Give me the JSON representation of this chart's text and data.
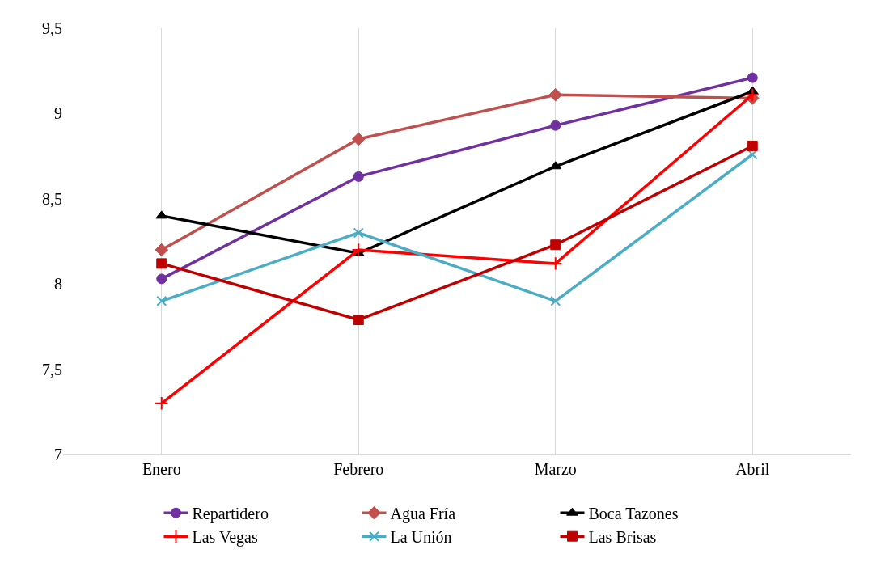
{
  "chart_data": {
    "type": "line",
    "categories": [
      "Enero",
      "Febrero",
      "Marzo",
      "Abril"
    ],
    "series": [
      {
        "name": "Repartidero",
        "color": "#7030a0",
        "marker": "circle",
        "values": [
          8.03,
          8.63,
          8.93,
          9.21
        ]
      },
      {
        "name": "Agua Fría",
        "color": "#c0504d",
        "marker": "diamond",
        "values": [
          8.2,
          8.85,
          9.11,
          9.09
        ]
      },
      {
        "name": "Boca Tazones",
        "color": "#000000",
        "marker": "triangle",
        "values": [
          8.4,
          8.18,
          8.69,
          9.13
        ]
      },
      {
        "name": "Las Vegas",
        "color": "#ff0000",
        "marker": "cross",
        "values": [
          7.3,
          8.2,
          8.12,
          9.11
        ]
      },
      {
        "name": "La Unión",
        "color": "#4bacc6",
        "marker": "x",
        "values": [
          7.9,
          8.3,
          7.9,
          8.76
        ]
      },
      {
        "name": "Las Brisas",
        "color": "#c00000",
        "marker": "square",
        "values": [
          8.12,
          7.79,
          8.23,
          8.81
        ]
      }
    ],
    "ylim": [
      7,
      9.5
    ],
    "yticks": [
      {
        "value": 7,
        "label": "7"
      },
      {
        "value": 7.5,
        "label": "7,5"
      },
      {
        "value": 8,
        "label": "8"
      },
      {
        "value": 8.5,
        "label": "8,5"
      },
      {
        "value": 9,
        "label": "9"
      },
      {
        "value": 9.5,
        "label": "9,5"
      }
    ],
    "grid": "x",
    "legend": "bottom",
    "line_style": "solid"
  }
}
